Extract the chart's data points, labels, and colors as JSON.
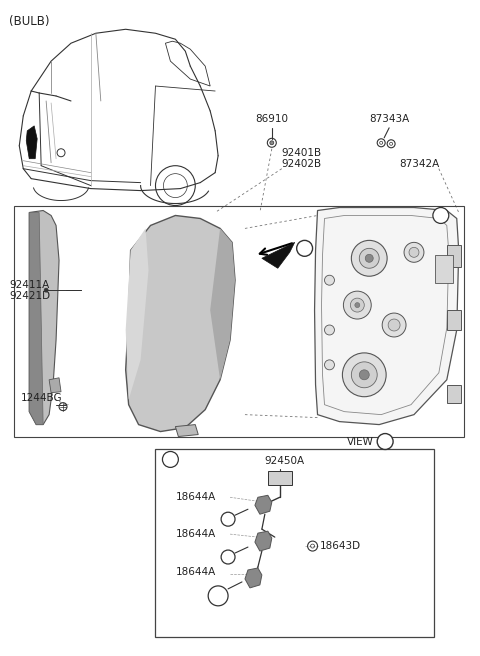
{
  "background_color": "#ffffff",
  "fig_width": 4.8,
  "fig_height": 6.56,
  "dpi": 100,
  "labels": {
    "bulb": "(BULB)",
    "86910": "86910",
    "87343A": "87343A",
    "92401B": "92401B",
    "92402B": "92402B",
    "87342A": "87342A",
    "92411A": "92411A",
    "92421D": "92421D",
    "1244BG": "1244BG",
    "92450A": "92450A",
    "18644A": "18644A",
    "18643D": "18643D",
    "VIEW": "VIEW",
    "A": "A",
    "a": "a"
  },
  "line_color": "#333333",
  "text_color": "#222222"
}
